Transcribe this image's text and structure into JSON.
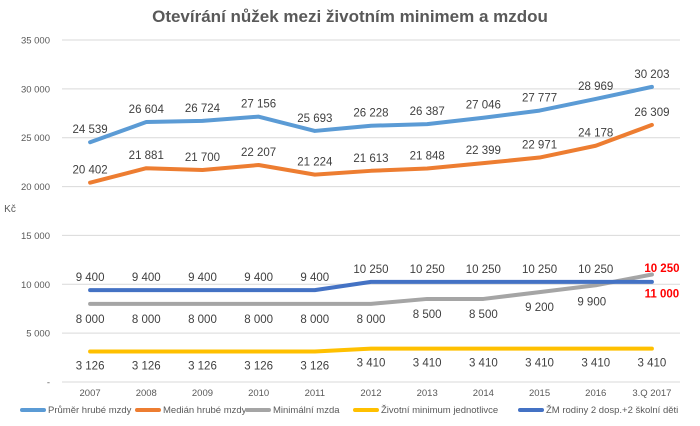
{
  "chart_data": {
    "type": "line",
    "title": "Otevírání nůžek mezi životním minimem a mzdou",
    "ylabel": "Kč",
    "xlabel": "",
    "ylim": [
      0,
      35000
    ],
    "yticks": [
      0,
      5000,
      10000,
      15000,
      20000,
      25000,
      30000,
      35000
    ],
    "ytick_labels": [
      "-",
      "5 000",
      "10 000",
      "15 000",
      "20 000",
      "25 000",
      "30 000",
      "35 000"
    ],
    "categories": [
      "2007",
      "2008",
      "2009",
      "2010",
      "2011",
      "2012",
      "2013",
      "2014",
      "2015",
      "2016",
      "3.Q 2017"
    ],
    "grid": true,
    "legend_position": "bottom",
    "series": [
      {
        "name": "Průměr hrubé mzdy",
        "color": "#5b9bd5",
        "values": [
          24539,
          26604,
          26724,
          27156,
          25693,
          26228,
          26387,
          27046,
          27777,
          28969,
          30203
        ],
        "labels": [
          "24 539",
          "26 604",
          "26 724",
          "27 156",
          "25 693",
          "26 228",
          "26 387",
          "27 046",
          "27 777",
          "28 969",
          "30 203"
        ]
      },
      {
        "name": "Medián hrubé mzdy",
        "color": "#ed7d31",
        "values": [
          20402,
          21881,
          21700,
          22207,
          21224,
          21613,
          21848,
          22399,
          22971,
          24178,
          26309
        ],
        "labels": [
          "20 402",
          "21 881",
          "21 700",
          "22 207",
          "21 224",
          "21 613",
          "21 848",
          "22 399",
          "22 971",
          "24 178",
          "26 309"
        ]
      },
      {
        "name": "Minimální mzda",
        "color": "#a5a5a5",
        "values": [
          8000,
          8000,
          8000,
          8000,
          8000,
          8000,
          8500,
          8500,
          9200,
          9900,
          11000
        ],
        "labels": [
          "8 000",
          "8 000",
          "8 000",
          "8 000",
          "8 000",
          "8 000",
          "8 500",
          "8 500",
          "9 200",
          "9 900",
          "11 000"
        ]
      },
      {
        "name": "Životní minimum jednotlivce",
        "color": "#ffc000",
        "values": [
          3126,
          3126,
          3126,
          3126,
          3126,
          3410,
          3410,
          3410,
          3410,
          3410,
          3410
        ],
        "labels": [
          "3 126",
          "3 126",
          "3 126",
          "3 126",
          "3 126",
          "3 410",
          "3 410",
          "3 410",
          "3 410",
          "3 410",
          "3 410"
        ]
      },
      {
        "name": "ŽM rodiny 2 dosp.+2 školní děti",
        "color": "#4472c4",
        "values": [
          9400,
          9400,
          9400,
          9400,
          9400,
          10250,
          10250,
          10250,
          10250,
          10250,
          10250
        ],
        "labels": [
          "9 400",
          "9 400",
          "9 400",
          "9 400",
          "9 400",
          "10 250",
          "10 250",
          "10 250",
          "10 250",
          "10 250",
          "10 250"
        ]
      }
    ]
  }
}
